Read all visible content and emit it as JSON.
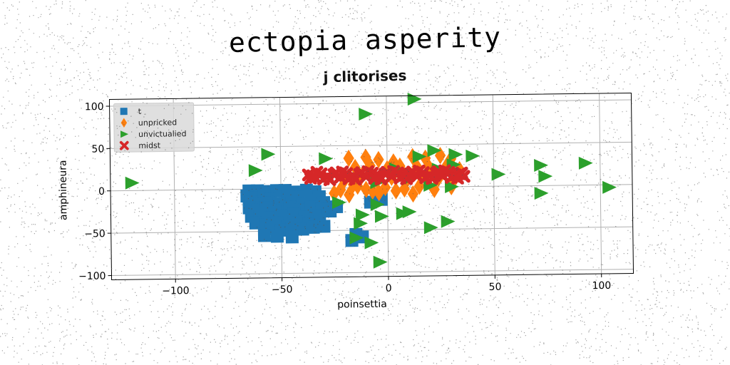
{
  "figure": {
    "suptitle": "ectopia asperity",
    "axes_title": "j clitorises"
  },
  "chart_data": {
    "type": "scatter",
    "title": "j clitorises",
    "xlabel": "poinsettia",
    "ylabel": "amphineura",
    "xlim": [
      -130,
      115
    ],
    "ylim": [
      -105,
      108
    ],
    "xticks": [
      -100,
      -50,
      0,
      50,
      100
    ],
    "xtick_labels": [
      "−100",
      "−50",
      "0",
      "50",
      "100"
    ],
    "yticks": [
      -100,
      -50,
      0,
      50,
      100
    ],
    "ytick_labels": [
      "−100",
      "−50",
      "0",
      "50",
      "100"
    ],
    "grid": true,
    "legend_position": "top-left",
    "series": [
      {
        "name": "t",
        "marker": "square",
        "color": "#1f77b4",
        "points": [
          [
            -65,
            -2
          ],
          [
            -61,
            -2
          ],
          [
            -57,
            -3
          ],
          [
            -52,
            -2
          ],
          [
            -48,
            -2
          ],
          [
            -44,
            -4
          ],
          [
            -38,
            -2
          ],
          [
            -34,
            -4
          ],
          [
            -66,
            -8
          ],
          [
            -62,
            -10
          ],
          [
            -58,
            -9
          ],
          [
            -55,
            -12
          ],
          [
            -47,
            -8
          ],
          [
            -42,
            -10
          ],
          [
            -36,
            -8
          ],
          [
            -32,
            -10
          ],
          [
            -64,
            -15
          ],
          [
            -60,
            -18
          ],
          [
            -56,
            -16
          ],
          [
            -51,
            -17
          ],
          [
            -40,
            -18
          ],
          [
            -35,
            -15
          ],
          [
            -30,
            -17
          ],
          [
            -65,
            -22
          ],
          [
            -61,
            -25
          ],
          [
            -57,
            -22
          ],
          [
            -53,
            -26
          ],
          [
            -46,
            -22
          ],
          [
            -41,
            -25
          ],
          [
            -36,
            -22
          ],
          [
            -31,
            -25
          ],
          [
            -64,
            -32
          ],
          [
            -60,
            -29
          ],
          [
            -56,
            -34
          ],
          [
            -50,
            -32
          ],
          [
            -44,
            -30
          ],
          [
            -39,
            -34
          ],
          [
            -34,
            -32
          ],
          [
            -62,
            -40
          ],
          [
            -57,
            -42
          ],
          [
            -52,
            -40
          ],
          [
            -47,
            -44
          ],
          [
            -42,
            -40
          ],
          [
            -37,
            -42
          ],
          [
            -32,
            -39
          ],
          [
            -55,
            -47
          ],
          [
            -50,
            -49
          ],
          [
            -45,
            -47
          ],
          [
            -40,
            -48
          ],
          [
            -35,
            -46
          ],
          [
            -30,
            -45
          ],
          [
            -58,
            -55
          ],
          [
            -52,
            -56
          ],
          [
            -45,
            -57
          ],
          [
            -27,
            -27
          ],
          [
            -24,
            -22
          ],
          [
            -8,
            -17
          ],
          [
            -3,
            -14
          ],
          [
            -15,
            -55
          ],
          [
            -12,
            -58
          ],
          [
            -17,
            -62
          ]
        ]
      },
      {
        "name": "unpricked",
        "marker": "diamond",
        "color": "#ff7f0e",
        "points": [
          [
            -18,
            35
          ],
          [
            -10,
            36
          ],
          [
            -4,
            33
          ],
          [
            3,
            30
          ],
          [
            12,
            36
          ],
          [
            18,
            34
          ],
          [
            25,
            37
          ],
          [
            30,
            33
          ],
          [
            -15,
            24
          ],
          [
            -8,
            26
          ],
          [
            0,
            22
          ],
          [
            6,
            25
          ],
          [
            14,
            24
          ],
          [
            20,
            22
          ],
          [
            28,
            25
          ],
          [
            34,
            20
          ],
          [
            -20,
            10
          ],
          [
            -12,
            14
          ],
          [
            -5,
            9
          ],
          [
            2,
            12
          ],
          [
            9,
            8
          ],
          [
            16,
            12
          ],
          [
            24,
            10
          ],
          [
            31,
            7
          ],
          [
            -22,
            -2
          ],
          [
            -14,
            2
          ],
          [
            -7,
            -4
          ],
          [
            -1,
            0
          ],
          [
            8,
            -2
          ],
          [
            15,
            1
          ],
          [
            22,
            -3
          ],
          [
            30,
            0
          ],
          [
            -25,
            -6
          ],
          [
            -18,
            -8
          ],
          [
            -10,
            -2
          ],
          [
            -4,
            -6
          ],
          [
            4,
            -4
          ],
          [
            12,
            -8
          ],
          [
            -16,
            4
          ],
          [
            7,
            18
          ]
        ]
      },
      {
        "name": "unvictualied",
        "marker": "triangle-right",
        "color": "#2ca02c",
        "points": [
          [
            -120,
            9
          ],
          [
            -62,
            22
          ],
          [
            -56,
            41
          ],
          [
            -29,
            35
          ],
          [
            -10,
            87
          ],
          [
            13,
            104
          ],
          [
            15,
            36
          ],
          [
            22,
            43
          ],
          [
            32,
            38
          ],
          [
            40,
            36
          ],
          [
            52,
            14
          ],
          [
            72,
            24
          ],
          [
            74,
            11
          ],
          [
            72,
            -9
          ],
          [
            93,
            26
          ],
          [
            104,
            -3
          ],
          [
            -23,
            -17
          ],
          [
            -12,
            -32
          ],
          [
            -13,
            -42
          ],
          [
            -15,
            -59
          ],
          [
            -8,
            -65
          ],
          [
            -4,
            -88
          ],
          [
            -5,
            -20
          ],
          [
            -3,
            -34
          ],
          [
            7,
            -31
          ],
          [
            10,
            -29
          ],
          [
            20,
            -48
          ],
          [
            28,
            -41
          ],
          [
            10,
            10
          ],
          [
            20,
            2
          ],
          [
            30,
            0
          ],
          [
            4,
            22
          ],
          [
            24,
            21
          ],
          [
            12,
            13
          ],
          [
            -5,
            6
          ],
          [
            31,
            26
          ]
        ]
      },
      {
        "name": "midst",
        "marker": "x",
        "color": "#d62728",
        "points": [
          [
            -37,
            16
          ],
          [
            -34,
            13
          ],
          [
            -31,
            17
          ],
          [
            -28,
            14
          ],
          [
            -25,
            16
          ],
          [
            -22,
            13
          ],
          [
            -19,
            17
          ],
          [
            -16,
            14
          ],
          [
            -13,
            16
          ],
          [
            -10,
            13
          ],
          [
            -7,
            17
          ],
          [
            -4,
            14
          ],
          [
            -1,
            16
          ],
          [
            2,
            13
          ],
          [
            5,
            17
          ],
          [
            8,
            14
          ],
          [
            11,
            16
          ],
          [
            14,
            13
          ],
          [
            17,
            17
          ],
          [
            20,
            14
          ],
          [
            23,
            16
          ],
          [
            26,
            13
          ],
          [
            29,
            17
          ],
          [
            32,
            14
          ],
          [
            35,
            16
          ],
          [
            -36,
            12
          ],
          [
            -30,
            11
          ],
          [
            -24,
            18
          ],
          [
            -18,
            11
          ],
          [
            -12,
            18
          ],
          [
            -6,
            11
          ],
          [
            0,
            18
          ],
          [
            6,
            11
          ],
          [
            12,
            18
          ],
          [
            18,
            11
          ],
          [
            24,
            18
          ],
          [
            30,
            11
          ],
          [
            36,
            12
          ],
          [
            -33,
            19
          ],
          [
            -27,
            10
          ],
          [
            -21,
            19
          ],
          [
            -15,
            10
          ],
          [
            -9,
            19
          ],
          [
            -3,
            10
          ],
          [
            3,
            19
          ],
          [
            9,
            10
          ],
          [
            15,
            19
          ],
          [
            21,
            10
          ],
          [
            27,
            19
          ],
          [
            33,
            10
          ],
          [
            -35,
            15
          ],
          [
            -20,
            15
          ],
          [
            -5,
            15
          ],
          [
            10,
            15
          ],
          [
            25,
            15
          ],
          [
            34,
            15
          ]
        ]
      }
    ]
  }
}
